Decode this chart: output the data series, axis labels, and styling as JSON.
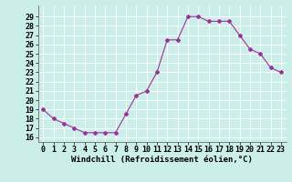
{
  "x": [
    0,
    1,
    2,
    3,
    4,
    5,
    6,
    7,
    8,
    9,
    10,
    11,
    12,
    13,
    14,
    15,
    16,
    17,
    18,
    19,
    20,
    21,
    22,
    23
  ],
  "y": [
    19,
    18,
    17.5,
    17,
    16.5,
    16.5,
    16.5,
    16.5,
    18.5,
    20.5,
    21,
    23,
    26.5,
    26.5,
    29,
    29,
    28.5,
    28.5,
    28.5,
    27,
    25.5,
    25,
    23.5,
    23
  ],
  "line_color": "#993399",
  "marker": "D",
  "marker_size": 2.0,
  "bg_color": "#cceee8",
  "grid_color": "#ffffff",
  "xlabel": "Windchill (Refroidissement éolien,°C)",
  "xlabel_fontsize": 6.5,
  "tick_fontsize": 6,
  "ylim": [
    15.5,
    30.2
  ],
  "yticks": [
    16,
    17,
    18,
    19,
    20,
    21,
    22,
    23,
    24,
    25,
    26,
    27,
    28,
    29
  ],
  "xticks": [
    0,
    1,
    2,
    3,
    4,
    5,
    6,
    7,
    8,
    9,
    10,
    11,
    12,
    13,
    14,
    15,
    16,
    17,
    18,
    19,
    20,
    21,
    22,
    23
  ],
  "xlim": [
    -0.5,
    23.5
  ]
}
